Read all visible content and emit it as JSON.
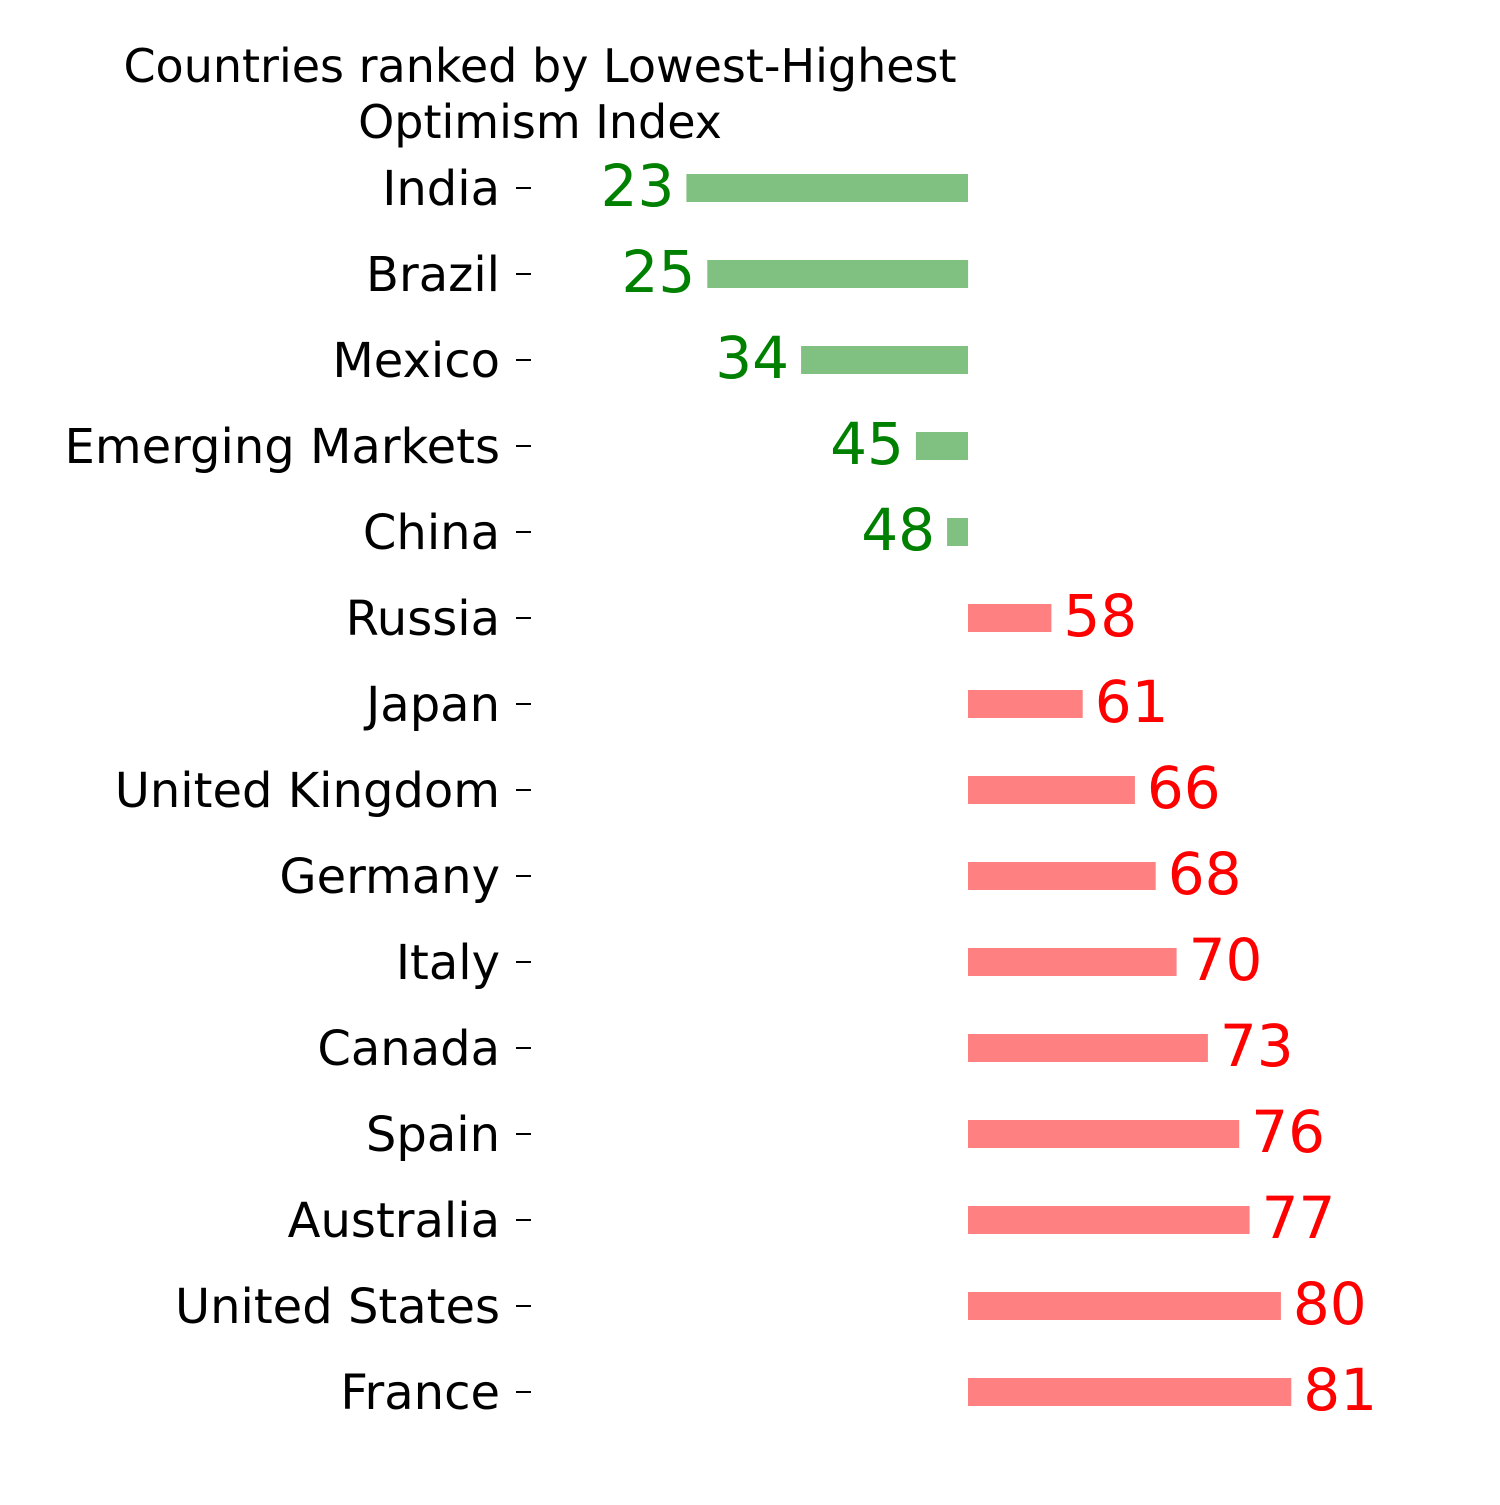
{
  "colors": {
    "negative_bar": "#80c080",
    "negative_text": "#008000",
    "positive_bar": "#ff8080",
    "positive_text": "#ff0000",
    "axis_text": "#000000"
  },
  "chart_data": {
    "type": "bar",
    "orientation": "horizontal",
    "title_line1": "Countries ranked by Lowest-Highest",
    "title_line2": "Optimism Index",
    "xlabel": "",
    "ylabel": "",
    "baseline": 50,
    "xlim": [
      10,
      90
    ],
    "grid": false,
    "categories": [
      "India",
      "Brazil",
      "Mexico",
      "Emerging Markets",
      "China",
      "Russia",
      "Japan",
      "United Kingdom",
      "Germany",
      "Italy",
      "Canada",
      "Spain",
      "Australia",
      "United States",
      "France"
    ],
    "values": [
      23,
      25,
      34,
      45,
      48,
      58,
      61,
      66,
      68,
      70,
      73,
      76,
      77,
      80,
      81
    ],
    "value_labels": [
      "23",
      "25",
      "34",
      "45",
      "48",
      "58",
      "61",
      "66",
      "68",
      "70",
      "73",
      "76",
      "77",
      "80",
      "81"
    ]
  }
}
